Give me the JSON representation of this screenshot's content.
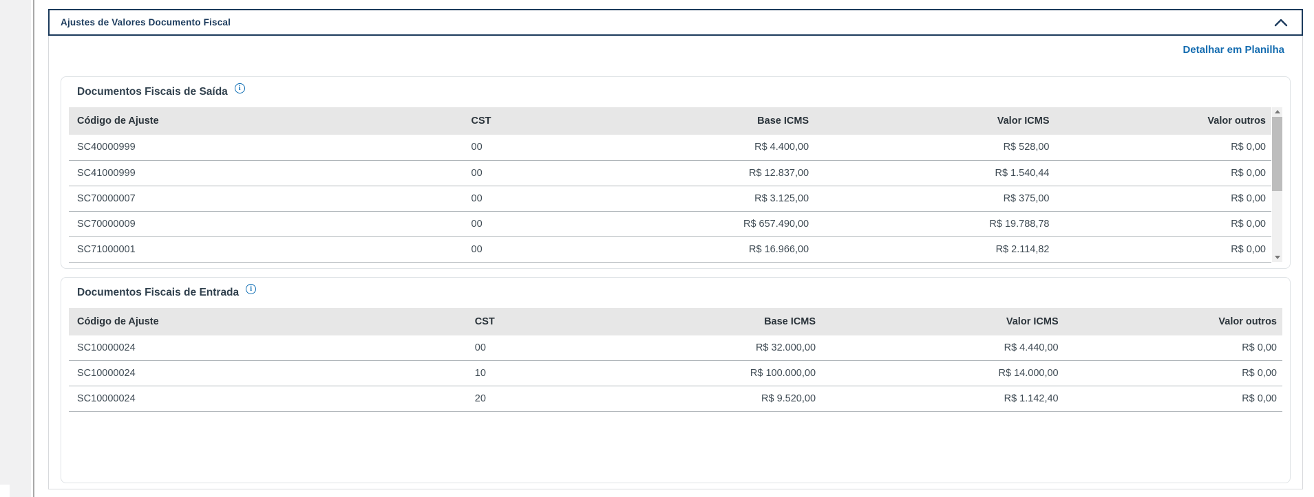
{
  "accordion": {
    "title": "Ajustes de Valores Documento Fiscal",
    "state": "expanded"
  },
  "toolbar": {
    "detail_link": "Detalhar em Planilha"
  },
  "icons": {
    "collapse": "chevron-up",
    "info": "info-circle",
    "info_glyph": "i",
    "scroll_up": "triangle-up",
    "scroll_down": "triangle-down"
  },
  "colors": {
    "accent_navy": "#1b3a5c",
    "link_blue": "#146cb0",
    "info_blue": "#0c6cb3",
    "table_header_bg": "#e7e7e7",
    "row_divider": "#b0b6ba"
  },
  "tables": [
    {
      "id": "saida",
      "title": "Documentos Fiscais de Saída",
      "columns": [
        "Código de Ajuste",
        "CST",
        "Base ICMS",
        "Valor ICMS",
        "Valor outros"
      ],
      "rows": [
        [
          "SC40000999",
          "00",
          "R$ 4.400,00",
          "R$ 528,00",
          "R$ 0,00"
        ],
        [
          "SC41000999",
          "00",
          "R$ 12.837,00",
          "R$ 1.540,44",
          "R$ 0,00"
        ],
        [
          "SC70000007",
          "00",
          "R$ 3.125,00",
          "R$ 375,00",
          "R$ 0,00"
        ],
        [
          "SC70000009",
          "00",
          "R$ 657.490,00",
          "R$ 19.788,78",
          "R$ 0,00"
        ],
        [
          "SC71000001",
          "00",
          "R$ 16.966,00",
          "R$ 2.114,82",
          "R$ 0,00"
        ]
      ],
      "has_scrollbar": true
    },
    {
      "id": "entrada",
      "title": "Documentos Fiscais de Entrada",
      "columns": [
        "Código de Ajuste",
        "CST",
        "Base ICMS",
        "Valor ICMS",
        "Valor outros"
      ],
      "rows": [
        [
          "SC10000024",
          "00",
          "R$ 32.000,00",
          "R$ 4.440,00",
          "R$ 0,00"
        ],
        [
          "SC10000024",
          "10",
          "R$ 100.000,00",
          "R$ 14.000,00",
          "R$ 0,00"
        ],
        [
          "SC10000024",
          "20",
          "R$ 9.520,00",
          "R$ 1.142,40",
          "R$ 0,00"
        ]
      ],
      "has_scrollbar": false
    }
  ]
}
